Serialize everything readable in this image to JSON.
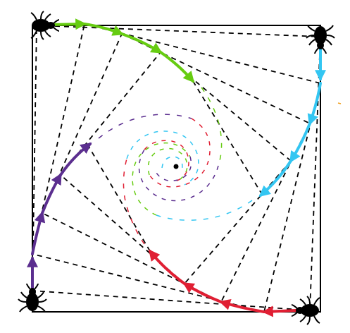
{
  "diagram": {
    "type": "pursuit-curve-illustration",
    "description_label": "",
    "colors": {
      "background": "#ffffff",
      "square": "#000000",
      "dashed": "#000000",
      "green": "#66cc11",
      "blue": "#33c6f2",
      "red": "#e01f33",
      "purple": "#5b2e8f",
      "bug": "#000000"
    },
    "bugs": [
      {
        "corner": "top-left",
        "icon": "bug-icon",
        "color": "green",
        "heading": "right"
      },
      {
        "corner": "top-right",
        "icon": "bug-icon",
        "color": "blue",
        "heading": "down"
      },
      {
        "corner": "bottom-right",
        "icon": "bug-icon",
        "color": "red",
        "heading": "left"
      },
      {
        "corner": "bottom-left",
        "icon": "bug-icon",
        "color": "purple",
        "heading": "up"
      }
    ],
    "center_marker": {
      "icon": "center-dot-icon"
    }
  }
}
